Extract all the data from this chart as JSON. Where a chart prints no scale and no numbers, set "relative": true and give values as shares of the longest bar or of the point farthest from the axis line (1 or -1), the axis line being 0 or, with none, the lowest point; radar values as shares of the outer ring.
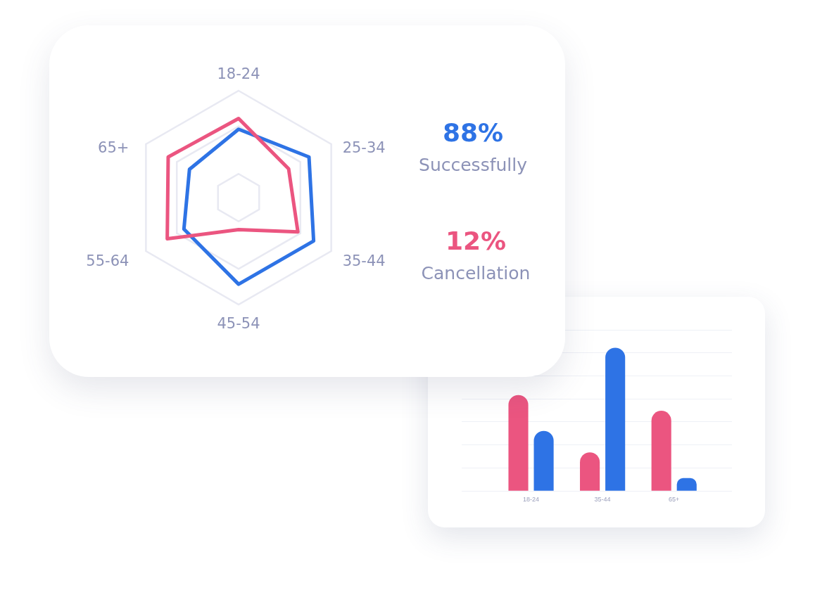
{
  "chart_data": [
    {
      "type": "radar",
      "categories": [
        "18-24",
        "25-34",
        "35-44",
        "45-54",
        "55-64",
        "65+"
      ],
      "relative": true,
      "grid": true,
      "series": [
        {
          "color": "#2e73e5",
          "values": [
            0.64,
            0.76,
            0.81,
            0.81,
            0.59,
            0.53
          ]
        },
        {
          "color": "#eb5580",
          "values": [
            0.74,
            0.54,
            0.64,
            0.3,
            0.77,
            0.76
          ]
        }
      ]
    },
    {
      "type": "other",
      "categories": [
        "Successfully",
        "Cancellation"
      ],
      "values": [
        88,
        12
      ],
      "value_labels": [
        "88%",
        "12%"
      ]
    },
    {
      "type": "bar",
      "categories": [
        "18-24",
        "35-44",
        "65+"
      ],
      "relative": true,
      "grid": "y",
      "series": [
        {
          "color": "#eb5580",
          "values": [
            0.67,
            0.27,
            0.56
          ]
        },
        {
          "color": "#2e73e5",
          "values": [
            0.42,
            1,
            0.09
          ]
        }
      ]
    }
  ]
}
